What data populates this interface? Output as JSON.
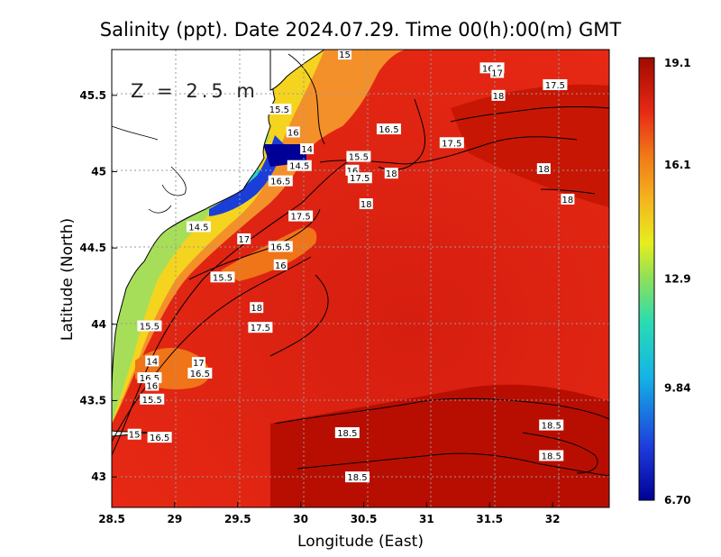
{
  "title": "Salinity (ppt). Date 2024.07.29. Time 00(h):00(m) GMT",
  "depth_label": "Z = 2.5 m",
  "x_axis": {
    "label": "Longitude (East)",
    "ticks": [
      "28.5",
      "29",
      "29.5",
      "30",
      "30.5",
      "31",
      "31.5",
      "32"
    ],
    "range": [
      28.5,
      32.45
    ]
  },
  "y_axis": {
    "label": "Latitude (North)",
    "ticks": [
      "43",
      "43.5",
      "44",
      "44.5",
      "45",
      "45.5"
    ],
    "range": [
      42.8,
      45.8
    ]
  },
  "colorbar": {
    "ticks": [
      "19.1",
      "16.1",
      "12.9",
      "9.84",
      "6.70"
    ],
    "min": 6.7,
    "max": 19.1
  },
  "grid": true,
  "colors": {
    "sea_dark": "#b20c00",
    "sea": "#e62414",
    "orange": "#f59a1c",
    "yellow": "#f0ea20",
    "green": "#a8e060",
    "cyan": "#1ec8c8",
    "blue": "#1e46dc",
    "navy": "#000096",
    "land": "#ffffff"
  },
  "contour_labels": [
    {
      "text": "15",
      "lon": 30.35,
      "lat": 45.77
    },
    {
      "text": "16.5",
      "lon": 31.52,
      "lat": 45.68
    },
    {
      "text": "17",
      "lon": 31.56,
      "lat": 45.65
    },
    {
      "text": "17.5",
      "lon": 32.02,
      "lat": 45.57
    },
    {
      "text": "18",
      "lon": 31.57,
      "lat": 45.5
    },
    {
      "text": "15.5",
      "lon": 29.83,
      "lat": 45.41
    },
    {
      "text": "16.5",
      "lon": 30.7,
      "lat": 45.28
    },
    {
      "text": "16",
      "lon": 29.94,
      "lat": 45.26
    },
    {
      "text": "17.5",
      "lon": 31.2,
      "lat": 45.19
    },
    {
      "text": "14",
      "lon": 30.05,
      "lat": 45.15
    },
    {
      "text": "15.5",
      "lon": 30.46,
      "lat": 45.1
    },
    {
      "text": "14.5",
      "lon": 29.99,
      "lat": 45.04
    },
    {
      "text": "18",
      "lon": 31.93,
      "lat": 45.02
    },
    {
      "text": "16",
      "lon": 30.41,
      "lat": 45.01
    },
    {
      "text": "18",
      "lon": 30.72,
      "lat": 44.99
    },
    {
      "text": "17.5",
      "lon": 30.47,
      "lat": 44.96
    },
    {
      "text": "16.5",
      "lon": 29.84,
      "lat": 44.94
    },
    {
      "text": "18",
      "lon": 32.12,
      "lat": 44.82
    },
    {
      "text": "18",
      "lon": 30.52,
      "lat": 44.79
    },
    {
      "text": "17.5",
      "lon": 30.0,
      "lat": 44.71
    },
    {
      "text": "14.5",
      "lon": 29.19,
      "lat": 44.64
    },
    {
      "text": "17",
      "lon": 29.55,
      "lat": 44.56
    },
    {
      "text": "16.5",
      "lon": 29.84,
      "lat": 44.51
    },
    {
      "text": "16",
      "lon": 29.84,
      "lat": 44.39
    },
    {
      "text": "15.5",
      "lon": 29.38,
      "lat": 44.31
    },
    {
      "text": "18",
      "lon": 29.65,
      "lat": 44.11
    },
    {
      "text": "17.5",
      "lon": 29.68,
      "lat": 43.98
    },
    {
      "text": "15.5",
      "lon": 28.8,
      "lat": 43.99
    },
    {
      "text": "14",
      "lon": 28.82,
      "lat": 43.76
    },
    {
      "text": "17",
      "lon": 29.19,
      "lat": 43.75
    },
    {
      "text": "16.5",
      "lon": 29.2,
      "lat": 43.68
    },
    {
      "text": "16.5",
      "lon": 28.8,
      "lat": 43.65
    },
    {
      "text": "16",
      "lon": 28.82,
      "lat": 43.6
    },
    {
      "text": "15.5",
      "lon": 28.82,
      "lat": 43.51
    },
    {
      "text": "18.5",
      "lon": 31.99,
      "lat": 43.34
    },
    {
      "text": "18.5",
      "lon": 30.37,
      "lat": 43.29
    },
    {
      "text": "15",
      "lon": 28.68,
      "lat": 43.28
    },
    {
      "text": "16.5",
      "lon": 28.88,
      "lat": 43.26
    },
    {
      "text": "18.5",
      "lon": 31.99,
      "lat": 43.14
    },
    {
      "text": "18.5",
      "lon": 30.45,
      "lat": 43.0
    }
  ]
}
